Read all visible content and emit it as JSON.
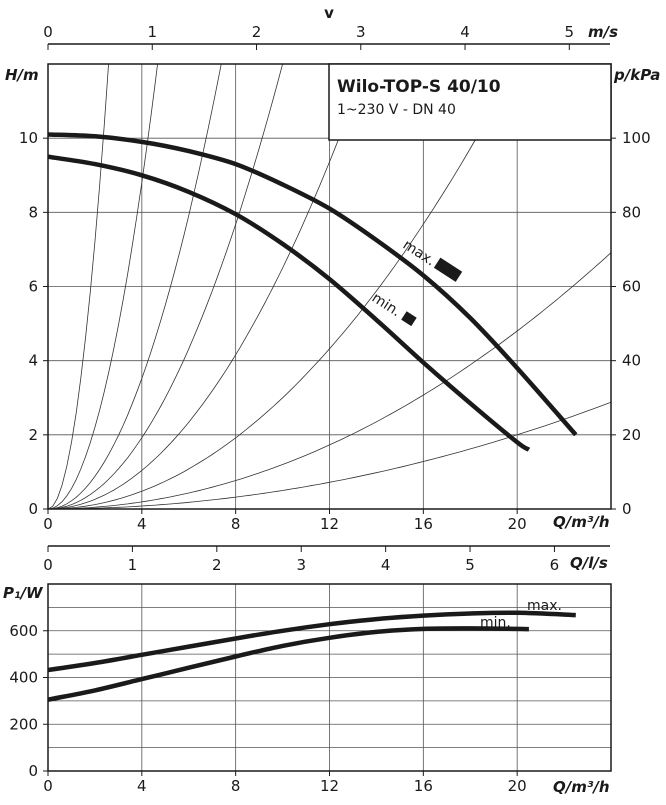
{
  "chart_data": [
    {
      "type": "line",
      "title": "Wilo-TOP-S 40/10",
      "subtitle": "1~230 V - DN 40",
      "xlabel": "Q/m³/h",
      "ylabel": "H/m",
      "y2label": "p/kPa",
      "top_axis_title": "v",
      "top_axis_unit": "m/s",
      "xlim": [
        0,
        24
      ],
      "ylim": [
        0,
        12
      ],
      "y2lim": [
        0,
        120
      ],
      "top_xlim": [
        0,
        5.4
      ],
      "x_ticks": [
        0,
        4,
        8,
        12,
        16,
        20
      ],
      "y_ticks": [
        0,
        2,
        4,
        6,
        8,
        10
      ],
      "y2_ticks": [
        0,
        20,
        40,
        60,
        80,
        100
      ],
      "top_ticks": [
        0,
        1,
        2,
        3,
        4,
        5
      ],
      "grid": true,
      "series": [
        {
          "name": "max.",
          "x": [
            0,
            2,
            4,
            6,
            8,
            10,
            12,
            14,
            16,
            18,
            20,
            22.5
          ],
          "y": [
            10.1,
            10.05,
            9.9,
            9.65,
            9.3,
            8.75,
            8.1,
            7.25,
            6.3,
            5.15,
            3.8,
            2.0
          ]
        },
        {
          "name": "min.",
          "x": [
            0,
            2,
            4,
            6,
            8,
            10,
            12,
            14,
            16,
            18,
            20,
            20.5
          ],
          "y": [
            9.5,
            9.3,
            9.0,
            8.55,
            7.95,
            7.15,
            6.2,
            5.1,
            3.95,
            2.85,
            1.8,
            1.6
          ]
        }
      ],
      "system_curves_k": [
        1.8,
        0.55,
        0.22,
        0.12,
        0.065,
        0.03,
        0.012,
        0.005
      ],
      "annotations": [
        "max.",
        "min."
      ]
    },
    {
      "type": "line",
      "xlabel": "Q/m³/h",
      "ylabel": "P₁/W",
      "top_axis_unit": "Q/l/s",
      "xlim": [
        0,
        24
      ],
      "ylim": [
        0,
        800
      ],
      "top_xlim": [
        0,
        6.67
      ],
      "x_ticks": [
        0,
        4,
        8,
        12,
        16,
        20
      ],
      "y_ticks": [
        0,
        200,
        400,
        600
      ],
      "top_ticks": [
        0,
        1,
        2,
        3,
        4,
        5,
        6
      ],
      "grid": true,
      "series": [
        {
          "name": "max.",
          "x": [
            0,
            2,
            4,
            6,
            8,
            10,
            12,
            14,
            16,
            18,
            20,
            22.5
          ],
          "y": [
            432,
            462,
            497,
            532,
            567,
            600,
            628,
            650,
            665,
            674,
            677,
            667
          ]
        },
        {
          "name": "min.",
          "x": [
            0,
            2,
            4,
            6,
            8,
            10,
            12,
            14,
            16,
            18,
            20,
            20.5
          ],
          "y": [
            305,
            345,
            393,
            442,
            490,
            535,
            570,
            595,
            608,
            610,
            608,
            607
          ]
        }
      ],
      "annotations": [
        "max.",
        "min."
      ]
    }
  ]
}
